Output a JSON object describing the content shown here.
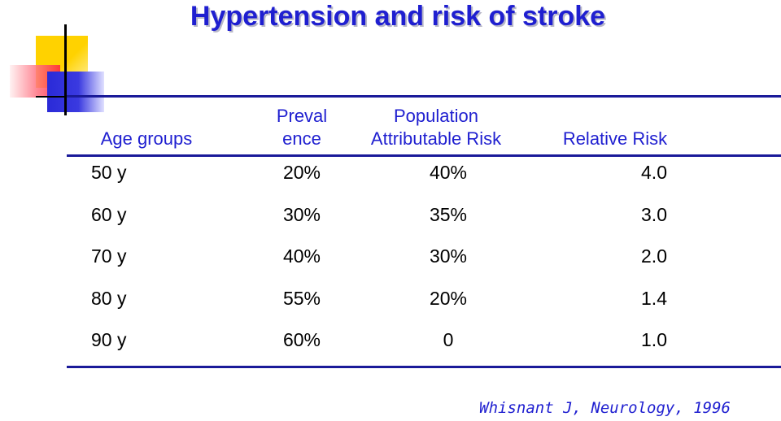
{
  "title": "Hypertension and risk of stroke",
  "headers": {
    "age": "Age groups",
    "prevalence_line1": "Preval",
    "prevalence_line2": "ence",
    "par_line1": "Population",
    "par_line2": "Attributable Risk",
    "rr": "Relative Risk"
  },
  "rows": [
    {
      "age": "50 y",
      "prevalence": "20%",
      "par": "40%",
      "rr": "4.0"
    },
    {
      "age": "60 y",
      "prevalence": "30%",
      "par": "35%",
      "rr": "3.0"
    },
    {
      "age": "70 y",
      "prevalence": "40%",
      "par": "30%",
      "rr": "2.0"
    },
    {
      "age": "80 y",
      "prevalence": "55%",
      "par": "20%",
      "rr": "1.4"
    },
    {
      "age": "90 y",
      "prevalence": "60%",
      "par": "0",
      "rr": "1.0"
    }
  ],
  "citation": "Whisnant J, Neurology, 1996",
  "colors": {
    "title": "#1f1fd0",
    "rules": "#1a1a99",
    "body_text": "#000000"
  }
}
